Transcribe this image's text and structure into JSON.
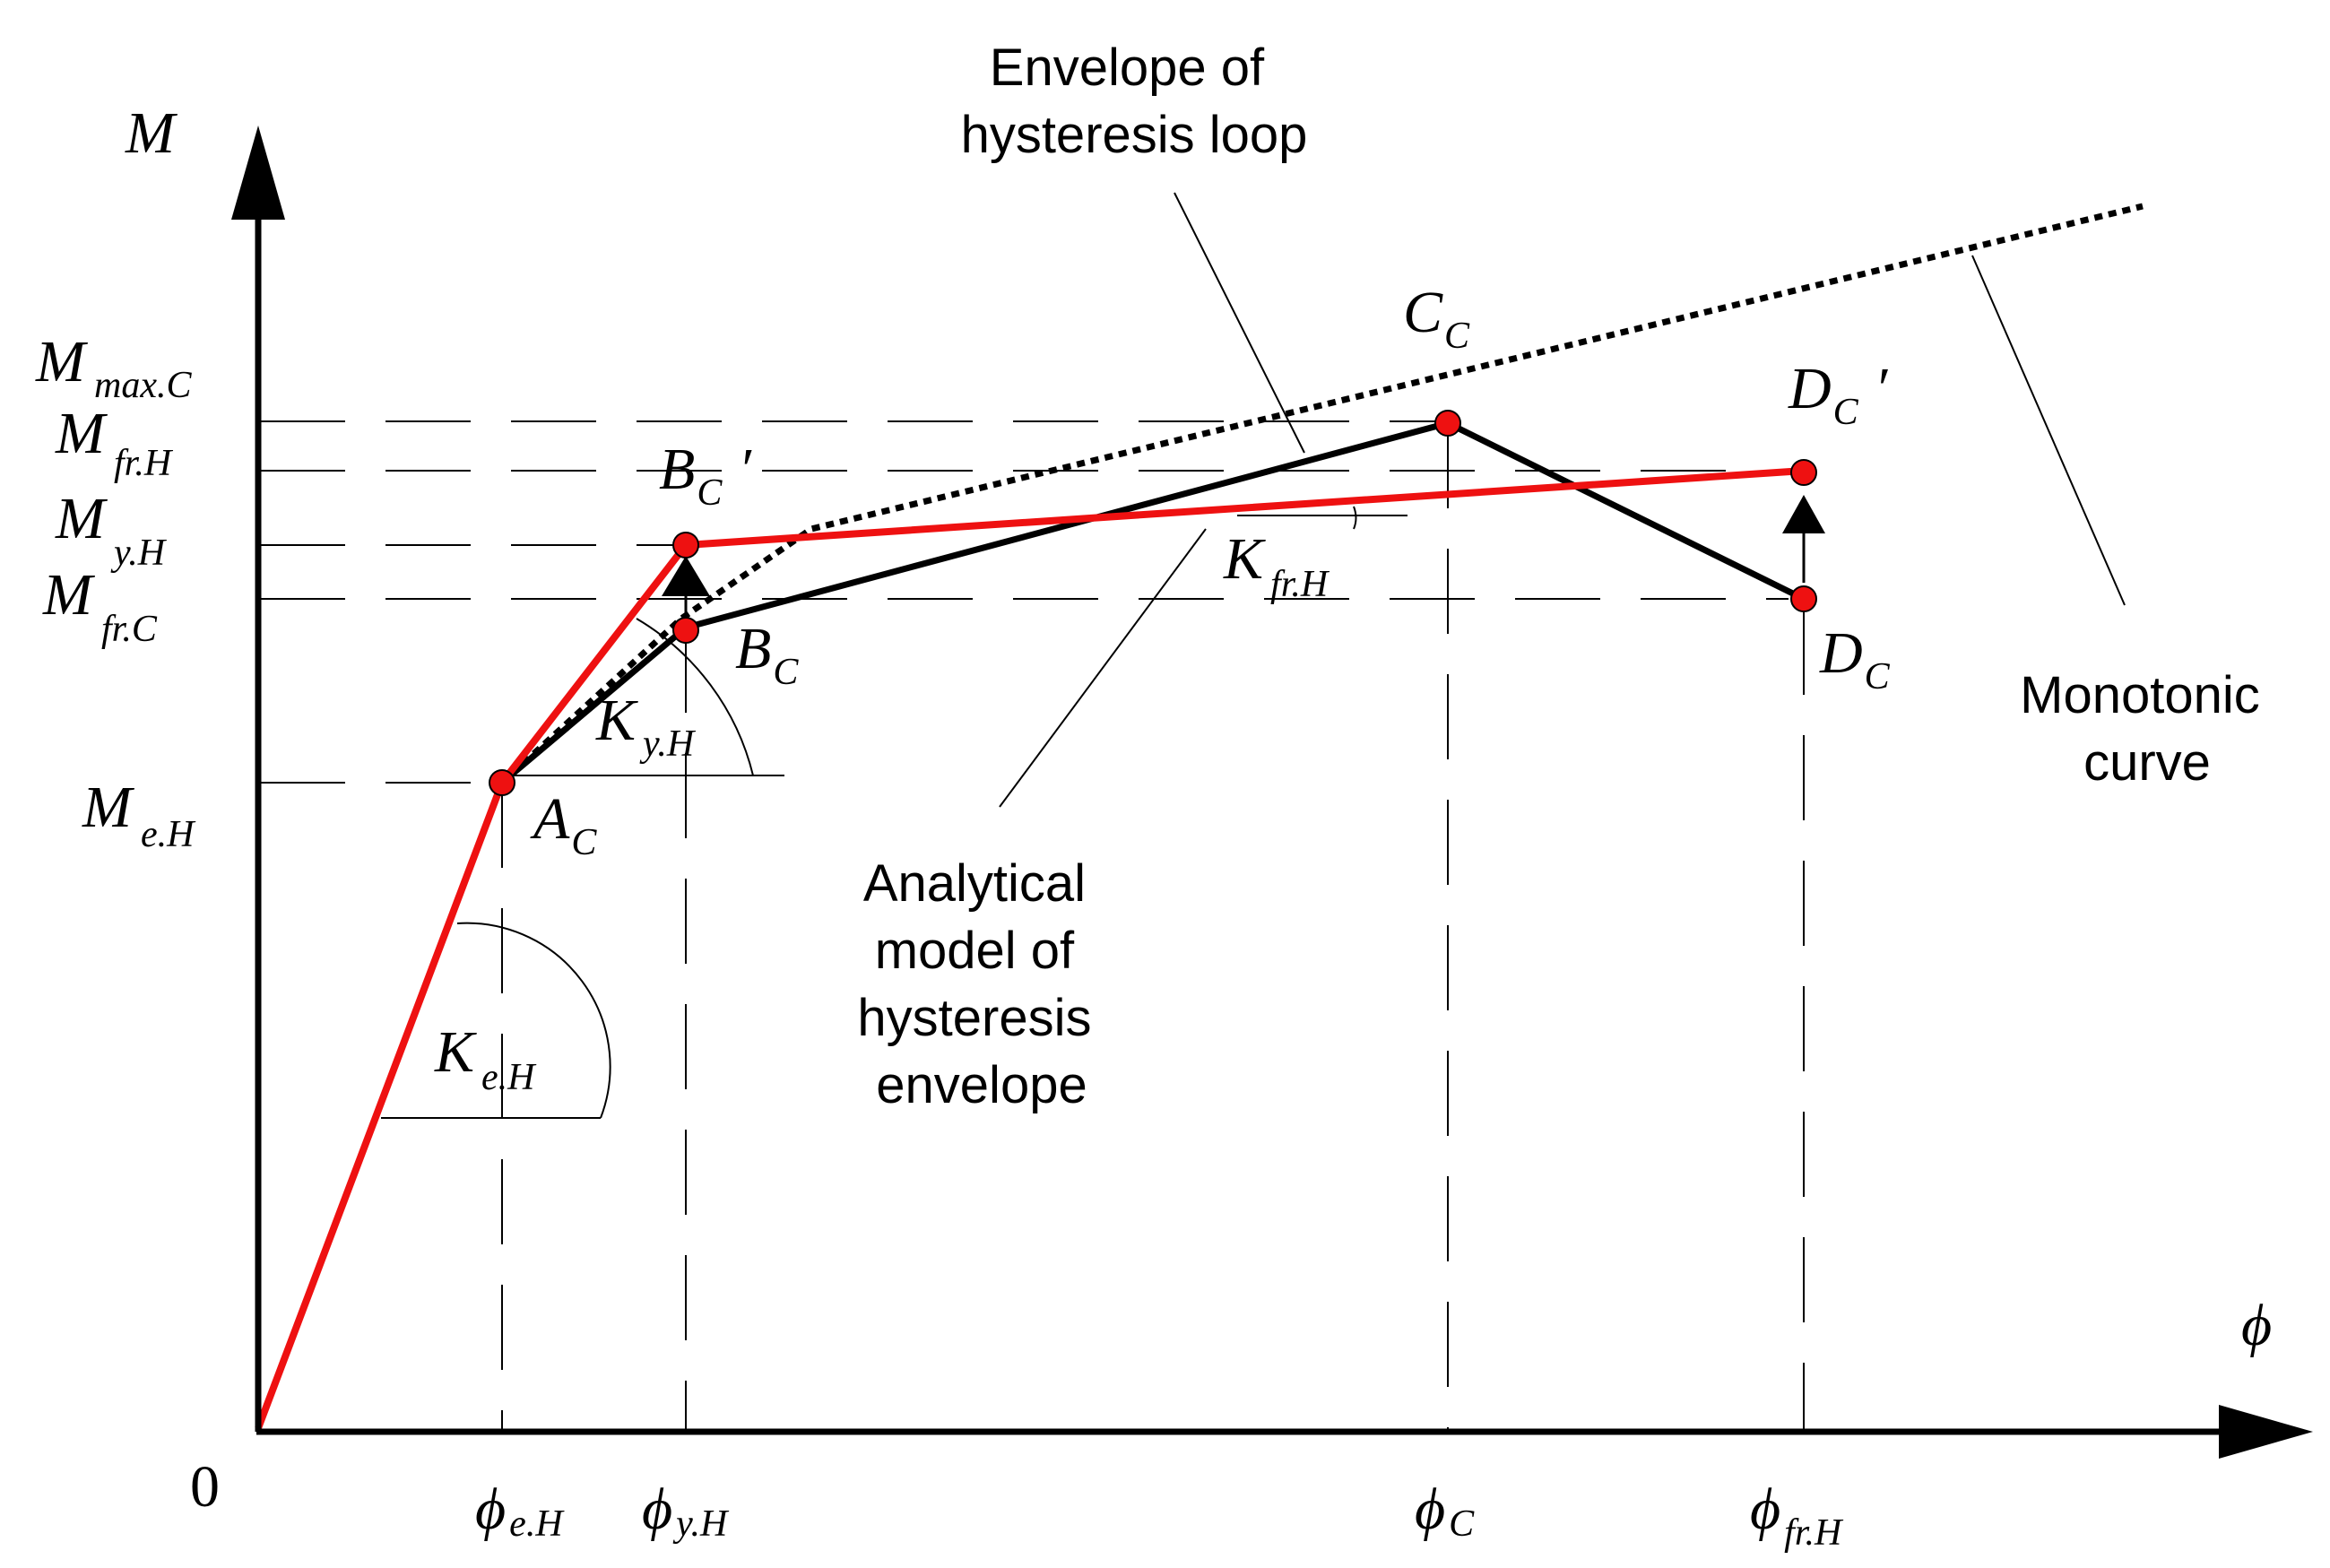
{
  "axes": {
    "y_label": "M",
    "x_label": "ϕ",
    "origin": "0"
  },
  "y_ticks": [
    {
      "main": "M",
      "sub": "max.C"
    },
    {
      "main": "M",
      "sub": "fr.H"
    },
    {
      "main": "M",
      "sub": "y.H"
    },
    {
      "main": "M",
      "sub": "fr.C"
    },
    {
      "main": "M",
      "sub": "e.H"
    }
  ],
  "x_ticks": [
    {
      "main": "ϕ",
      "sub": "e.H"
    },
    {
      "main": "ϕ",
      "sub": "y.H"
    },
    {
      "main": "ϕ",
      "sub": "C"
    },
    {
      "main": "ϕ",
      "sub": "fr.H"
    }
  ],
  "points": {
    "a_c": {
      "main": "A",
      "sub": "C",
      "prime": ""
    },
    "b_c": {
      "main": "B",
      "sub": "C",
      "prime": ""
    },
    "b_c_prime": {
      "main": "B",
      "sub": "C",
      "prime": "′"
    },
    "c_c": {
      "main": "C",
      "sub": "C",
      "prime": ""
    },
    "d_c": {
      "main": "D",
      "sub": "C",
      "prime": ""
    },
    "d_c_prime": {
      "main": "D",
      "sub": "C",
      "prime": "′"
    }
  },
  "stiffness": {
    "k_eh": {
      "main": "K",
      "sub": "e.H"
    },
    "k_yh": {
      "main": "K",
      "sub": "y.H"
    },
    "k_frh": {
      "main": "K",
      "sub": "fr.H"
    }
  },
  "annotations": {
    "envelope": [
      "Envelope of",
      "hysteresis loop"
    ],
    "monotonic": [
      "Monotonic",
      "curve"
    ],
    "analytical": [
      "Analytical",
      "model of",
      "hysteresis",
      "envelope"
    ]
  },
  "colors": {
    "analytical_model": "#ee1111",
    "envelope": "#000000",
    "monotonic": "#000000",
    "point_fill": "#ee1111"
  }
}
